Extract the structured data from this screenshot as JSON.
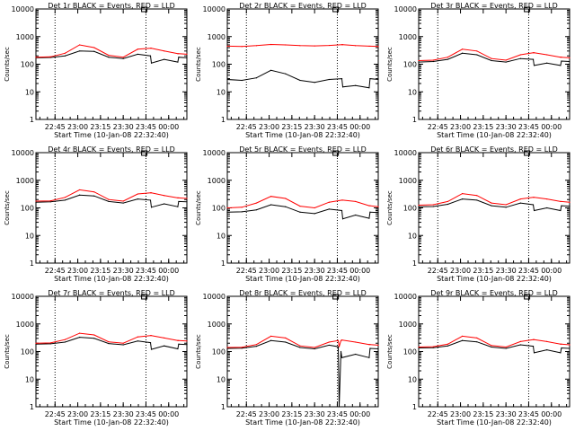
{
  "figure": {
    "background": "#ffffff",
    "axis_color": "#000000",
    "events_color": "#000000",
    "lld_color": "#ff0000"
  },
  "chart_data": [
    {
      "type": "line",
      "title": "Det 1r BLACK = Events, RED = LLD",
      "xlabel": "Start Time (10-Jan-08 22:32:40)",
      "ylabel": "Counts/sec",
      "ylog": true,
      "ylim": [
        1,
        10000
      ],
      "xlim": [
        22.54,
        24.2
      ],
      "yticks": [
        "1",
        "10",
        "100",
        "1000",
        "10000"
      ],
      "xticks": [
        "22:45",
        "23:00",
        "23:15",
        "23:30",
        "23:45",
        "00:00"
      ],
      "grid": false,
      "legend": "in title",
      "dotted_vlines": [
        "22:45",
        "23:45"
      ],
      "x": [
        22.54,
        22.7,
        22.86,
        23.02,
        23.18,
        23.34,
        23.5,
        23.66,
        23.8,
        23.81,
        23.95,
        24.1,
        24.11,
        24.2
      ],
      "series": [
        {
          "name": "Events",
          "color": "#000000",
          "values": [
            170,
            175,
            200,
            300,
            290,
            180,
            160,
            230,
            200,
            110,
            150,
            120,
            180,
            170
          ]
        },
        {
          "name": "LLD",
          "color": "#ff0000",
          "values": [
            180,
            185,
            250,
            500,
            400,
            210,
            180,
            350,
            380,
            380,
            300,
            240,
            240,
            230
          ]
        }
      ]
    },
    {
      "type": "line",
      "title": "Det 2r BLACK = Events, RED = LLD",
      "xlabel": "Start Time (10-Jan-08 22:32:40)",
      "ylabel": "Counts/sec",
      "ylog": true,
      "ylim": [
        1,
        10000
      ],
      "xlim": [
        22.54,
        24.2
      ],
      "yticks": [
        "1",
        "10",
        "100",
        "1000",
        "10000"
      ],
      "xticks": [
        "22:45",
        "23:00",
        "23:15",
        "23:30",
        "23:45",
        "00:00"
      ],
      "grid": false,
      "legend": "in title",
      "dotted_vlines": [
        "22:45",
        "23:45"
      ],
      "x": [
        22.54,
        22.7,
        22.86,
        23.02,
        23.18,
        23.34,
        23.5,
        23.66,
        23.8,
        23.81,
        23.95,
        24.1,
        24.11,
        24.2
      ],
      "series": [
        {
          "name": "Events",
          "color": "#000000",
          "values": [
            28,
            26,
            32,
            60,
            45,
            26,
            22,
            28,
            30,
            15,
            17,
            14,
            30,
            28
          ]
        },
        {
          "name": "LLD",
          "color": "#ff0000",
          "values": [
            450,
            440,
            470,
            520,
            500,
            470,
            460,
            480,
            510,
            510,
            470,
            450,
            450,
            440
          ]
        }
      ]
    },
    {
      "type": "line",
      "title": "Det 3r BLACK = Events, RED = LLD",
      "xlabel": "Start Time (10-Jan-08 22:32:40)",
      "ylabel": "Counts/sec",
      "ylog": true,
      "ylim": [
        1,
        10000
      ],
      "xlim": [
        22.54,
        24.2
      ],
      "yticks": [
        "1",
        "10",
        "100",
        "1000",
        "10000"
      ],
      "xticks": [
        "22:45",
        "23:00",
        "23:15",
        "23:30",
        "23:45",
        "00:00"
      ],
      "grid": false,
      "legend": "in title",
      "dotted_vlines": [
        "22:45",
        "23:45"
      ],
      "x": [
        22.54,
        22.7,
        22.86,
        23.02,
        23.18,
        23.34,
        23.5,
        23.66,
        23.8,
        23.81,
        23.95,
        24.1,
        24.11,
        24.2
      ],
      "series": [
        {
          "name": "Events",
          "color": "#000000",
          "values": [
            120,
            125,
            150,
            250,
            220,
            135,
            120,
            160,
            150,
            90,
            110,
            90,
            130,
            125
          ]
        },
        {
          "name": "LLD",
          "color": "#ff0000",
          "values": [
            135,
            140,
            180,
            350,
            300,
            160,
            140,
            220,
            260,
            260,
            220,
            180,
            180,
            170
          ]
        }
      ]
    },
    {
      "type": "line",
      "title": "Det 4r BLACK = Events, RED = LLD",
      "xlabel": "Start Time (10-Jan-08 22:32:40)",
      "ylabel": "Counts/sec",
      "ylog": true,
      "ylim": [
        1,
        10000
      ],
      "xlim": [
        22.54,
        24.2
      ],
      "yticks": [
        "1",
        "10",
        "100",
        "1000",
        "10000"
      ],
      "xticks": [
        "22:45",
        "23:00",
        "23:15",
        "23:30",
        "23:45",
        "00:00"
      ],
      "grid": false,
      "legend": "in title",
      "dotted_vlines": [
        "22:45",
        "23:45"
      ],
      "x": [
        22.54,
        22.7,
        22.86,
        23.02,
        23.18,
        23.34,
        23.5,
        23.66,
        23.8,
        23.81,
        23.95,
        24.1,
        24.11,
        24.2
      ],
      "series": [
        {
          "name": "Events",
          "color": "#000000",
          "values": [
            160,
            165,
            190,
            290,
            270,
            170,
            150,
            210,
            190,
            105,
            140,
            110,
            170,
            165
          ]
        },
        {
          "name": "LLD",
          "color": "#ff0000",
          "values": [
            175,
            180,
            240,
            450,
            380,
            200,
            175,
            320,
            350,
            350,
            280,
            230,
            230,
            220
          ]
        }
      ]
    },
    {
      "type": "line",
      "title": "Det 5r BLACK = Events, RED = LLD",
      "xlabel": "Start Time (10-Jan-08 22:32:40)",
      "ylabel": "Counts/sec",
      "ylog": true,
      "ylim": [
        1,
        10000
      ],
      "xlim": [
        22.54,
        24.2
      ],
      "yticks": [
        "1",
        "10",
        "100",
        "1000",
        "10000"
      ],
      "xticks": [
        "22:45",
        "23:00",
        "23:15",
        "23:30",
        "23:45",
        "00:00"
      ],
      "grid": false,
      "legend": "in title",
      "dotted_vlines": [
        "22:45",
        "23:45"
      ],
      "x": [
        22.54,
        22.7,
        22.86,
        23.02,
        23.18,
        23.34,
        23.5,
        23.66,
        23.8,
        23.81,
        23.95,
        24.1,
        24.11,
        24.2
      ],
      "series": [
        {
          "name": "Events",
          "color": "#000000",
          "values": [
            70,
            72,
            85,
            130,
            110,
            70,
            62,
            90,
            80,
            40,
            55,
            42,
            70,
            68
          ]
        },
        {
          "name": "LLD",
          "color": "#ff0000",
          "values": [
            100,
            105,
            150,
            260,
            220,
            115,
            100,
            160,
            190,
            190,
            170,
            120,
            120,
            110
          ]
        }
      ]
    },
    {
      "type": "line",
      "title": "Det 6r BLACK = Events, RED = LLD",
      "xlabel": "Start Time (10-Jan-08 22:32:40)",
      "ylabel": "Counts/sec",
      "ylog": true,
      "ylim": [
        1,
        10000
      ],
      "xlim": [
        22.54,
        24.2
      ],
      "yticks": [
        "1",
        "10",
        "100",
        "1000",
        "10000"
      ],
      "xticks": [
        "22:45",
        "23:00",
        "23:15",
        "23:30",
        "23:45",
        "00:00"
      ],
      "grid": false,
      "legend": "in title",
      "dotted_vlines": [
        "22:45",
        "23:45"
      ],
      "x": [
        22.54,
        22.7,
        22.86,
        23.02,
        23.18,
        23.34,
        23.5,
        23.66,
        23.8,
        23.81,
        23.95,
        24.1,
        24.11,
        24.2
      ],
      "series": [
        {
          "name": "Events",
          "color": "#000000",
          "values": [
            110,
            112,
            135,
            210,
            190,
            120,
            105,
            150,
            130,
            80,
            100,
            80,
            120,
            115
          ]
        },
        {
          "name": "LLD",
          "color": "#ff0000",
          "values": [
            125,
            130,
            170,
            330,
            280,
            150,
            130,
            210,
            240,
            240,
            210,
            170,
            170,
            160
          ]
        }
      ]
    },
    {
      "type": "line",
      "title": "Det 7r BLACK = Events, RED = LLD",
      "xlabel": "Start Time (10-Jan-08 22:32:40)",
      "ylabel": "Counts/sec",
      "ylog": true,
      "ylim": [
        1,
        10000
      ],
      "xlim": [
        22.54,
        24.2
      ],
      "yticks": [
        "1",
        "10",
        "100",
        "1000",
        "10000"
      ],
      "xticks": [
        "22:45",
        "23:00",
        "23:15",
        "23:30",
        "23:45",
        "00:00"
      ],
      "grid": false,
      "legend": "in title",
      "dotted_vlines": [
        "22:45",
        "23:45"
      ],
      "x": [
        22.54,
        22.7,
        22.86,
        23.02,
        23.18,
        23.34,
        23.5,
        23.66,
        23.8,
        23.81,
        23.95,
        24.1,
        24.11,
        24.2
      ],
      "series": [
        {
          "name": "Events",
          "color": "#000000",
          "values": [
            185,
            190,
            220,
            330,
            300,
            195,
            175,
            240,
            210,
            120,
            160,
            125,
            185,
            180
          ]
        },
        {
          "name": "LLD",
          "color": "#ff0000",
          "values": [
            200,
            205,
            270,
            460,
            400,
            225,
            200,
            340,
            380,
            380,
            310,
            250,
            250,
            240
          ]
        }
      ]
    },
    {
      "type": "line",
      "title": "Det 8r BLACK = Events, RED = LLD",
      "xlabel": "Start Time (10-Jan-08 22:32:40)",
      "ylabel": "Counts/sec",
      "ylog": true,
      "ylim": [
        1,
        10000
      ],
      "xlim": [
        22.54,
        24.2
      ],
      "yticks": [
        "1",
        "10",
        "100",
        "1000",
        "10000"
      ],
      "xticks": [
        "22:45",
        "23:00",
        "23:15",
        "23:30",
        "23:45",
        "00:00"
      ],
      "grid": false,
      "legend": "in title",
      "dotted_vlines": [
        "22:45",
        "23:45"
      ],
      "x": [
        22.54,
        22.7,
        22.86,
        23.02,
        23.18,
        23.34,
        23.5,
        23.66,
        23.76,
        23.77,
        23.79,
        23.8,
        23.95,
        24.1,
        24.11,
        24.2
      ],
      "series": [
        {
          "name": "Events",
          "color": "#000000",
          "values": [
            130,
            132,
            155,
            250,
            220,
            140,
            125,
            170,
            150,
            1,
            100,
            60,
            80,
            60,
            130,
            125
          ]
        },
        {
          "name": "LLD",
          "color": "#ff0000",
          "values": [
            140,
            142,
            180,
            360,
            310,
            160,
            140,
            220,
            250,
            150,
            250,
            260,
            220,
            180,
            180,
            170
          ]
        }
      ]
    },
    {
      "type": "line",
      "title": "Det 9r BLACK = Events, RED = LLD",
      "xlabel": "Start Time (10-Jan-08 22:32:40)",
      "ylabel": "Counts/sec",
      "ylog": true,
      "ylim": [
        1,
        10000
      ],
      "xlim": [
        22.54,
        24.2
      ],
      "yticks": [
        "1",
        "10",
        "100",
        "1000",
        "10000"
      ],
      "xticks": [
        "22:45",
        "23:00",
        "23:15",
        "23:30",
        "23:45",
        "00:00"
      ],
      "grid": false,
      "legend": "in title",
      "dotted_vlines": [
        "22:45",
        "23:45"
      ],
      "x": [
        22.54,
        22.7,
        22.86,
        23.02,
        23.18,
        23.34,
        23.5,
        23.66,
        23.8,
        23.81,
        23.95,
        24.1,
        24.11,
        24.2
      ],
      "series": [
        {
          "name": "Events",
          "color": "#000000",
          "values": [
            135,
            138,
            160,
            250,
            225,
            145,
            130,
            175,
            155,
            90,
            115,
            90,
            135,
            130
          ]
        },
        {
          "name": "LLD",
          "color": "#ff0000",
          "values": [
            145,
            150,
            185,
            360,
            310,
            165,
            145,
            230,
            270,
            270,
            230,
            185,
            185,
            175
          ]
        }
      ]
    }
  ]
}
